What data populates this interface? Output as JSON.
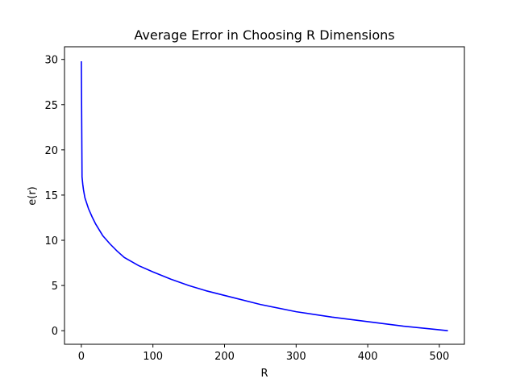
{
  "chart_data": {
    "type": "line",
    "title": "Average Error in Choosing R Dimensions",
    "xlabel": "R",
    "ylabel": "e(r)",
    "xlim": [
      -23.5,
      535
    ],
    "ylim": [
      -1.5,
      31.4
    ],
    "xticks": [
      0,
      100,
      200,
      300,
      400,
      500
    ],
    "yticks": [
      0,
      5,
      10,
      15,
      20,
      25,
      30
    ],
    "grid": false,
    "legend": "none",
    "series": [
      {
        "color": "#0000ff",
        "x": [
          0,
          1,
          2,
          3,
          5,
          10,
          15,
          20,
          30,
          40,
          50,
          60,
          80,
          100,
          125,
          150,
          175,
          200,
          250,
          300,
          350,
          400,
          450,
          500,
          512
        ],
        "y": [
          29.8,
          17.0,
          16.2,
          15.6,
          14.7,
          13.5,
          12.6,
          11.8,
          10.5,
          9.6,
          8.8,
          8.1,
          7.2,
          6.5,
          5.7,
          5.0,
          4.4,
          3.9,
          2.9,
          2.1,
          1.5,
          1.0,
          0.5,
          0.1,
          0.0
        ]
      }
    ]
  }
}
